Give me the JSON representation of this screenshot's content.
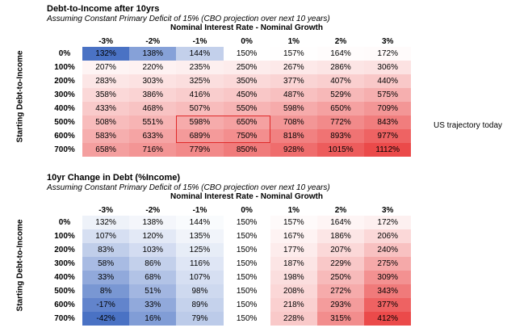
{
  "chart_data": [
    {
      "type": "table",
      "title": "Debt-to-Income after 10yrs",
      "subtitle": "Assuming Constant Primary Deficit of 15% (CBO projection over next 10 years)",
      "xlabel": "Nominal Interest Rate - Nominal Growth",
      "ylabel": "Starting Debt-to-Income",
      "columns": [
        "-3%",
        "-2%",
        "-1%",
        "0%",
        "1%",
        "2%",
        "3%"
      ],
      "rows": [
        "0%",
        "100%",
        "200%",
        "300%",
        "400%",
        "500%",
        "600%",
        "700%"
      ],
      "values": [
        [
          132,
          138,
          144,
          150,
          157,
          164,
          172
        ],
        [
          207,
          220,
          235,
          250,
          267,
          286,
          306
        ],
        [
          283,
          303,
          325,
          350,
          377,
          407,
          440
        ],
        [
          358,
          386,
          416,
          450,
          487,
          529,
          575
        ],
        [
          433,
          468,
          507,
          550,
          598,
          650,
          709
        ],
        [
          508,
          551,
          598,
          650,
          708,
          772,
          843
        ],
        [
          583,
          633,
          689,
          750,
          818,
          893,
          977
        ],
        [
          658,
          716,
          779,
          850,
          928,
          1015,
          1112
        ]
      ],
      "highlight": {
        "rows": [
          "500%",
          "600%"
        ],
        "columns": [
          "-1%",
          "0%"
        ],
        "color": "#e02a2a"
      },
      "annotation": "US trajectory today",
      "color_scale": "diverging blue-white-red"
    },
    {
      "type": "table",
      "title": "10yr Change in Debt (%Income)",
      "subtitle": "Assuming Constant Primary Deficit of 15% (CBO projection over next 10 years)",
      "xlabel": "Nominal Interest Rate - Nominal Growth",
      "ylabel": "Starting Debt-to-Income",
      "columns": [
        "-3%",
        "-2%",
        "-1%",
        "0%",
        "1%",
        "2%",
        "3%"
      ],
      "rows": [
        "0%",
        "100%",
        "200%",
        "300%",
        "400%",
        "500%",
        "600%",
        "700%"
      ],
      "values": [
        [
          132,
          138,
          144,
          150,
          157,
          164,
          172
        ],
        [
          107,
          120,
          135,
          150,
          167,
          186,
          206
        ],
        [
          83,
          103,
          125,
          150,
          177,
          207,
          240
        ],
        [
          58,
          86,
          116,
          150,
          187,
          229,
          275
        ],
        [
          33,
          68,
          107,
          150,
          198,
          250,
          309
        ],
        [
          8,
          51,
          98,
          150,
          208,
          272,
          343
        ],
        [
          -17,
          33,
          89,
          150,
          218,
          293,
          377
        ],
        [
          -42,
          16,
          79,
          150,
          228,
          315,
          412
        ]
      ],
      "color_scale": "diverging blue-white-red"
    }
  ]
}
